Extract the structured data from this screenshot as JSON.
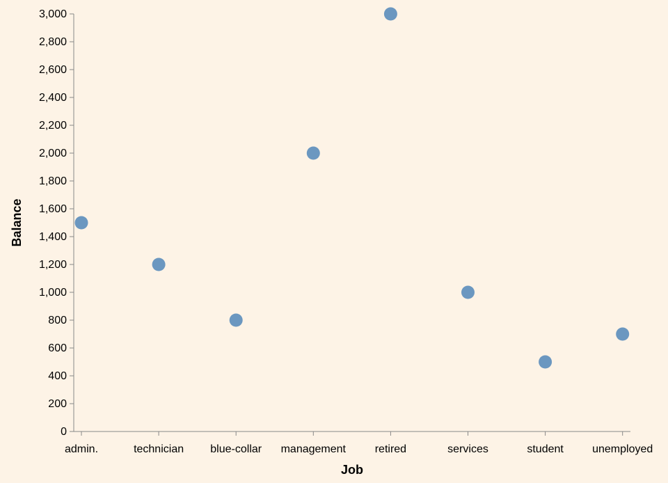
{
  "chart_data": {
    "type": "scatter",
    "title": "",
    "xlabel": "Job",
    "ylabel": "Balance",
    "categories": [
      "admin.",
      "technician",
      "blue-collar",
      "management",
      "retired",
      "services",
      "student",
      "unemployed"
    ],
    "values": [
      1500,
      1200,
      800,
      2000,
      3000,
      1000,
      500,
      700
    ],
    "ylim": [
      0,
      3000
    ],
    "yticks": [
      0,
      200,
      400,
      600,
      800,
      1000,
      1200,
      1400,
      1600,
      1800,
      2000,
      2200,
      2400,
      2600,
      2800,
      3000
    ],
    "grid": false,
    "colors": {
      "background": "#fdf3e6",
      "point": "#5b8dbb",
      "axis": "#888888"
    }
  }
}
